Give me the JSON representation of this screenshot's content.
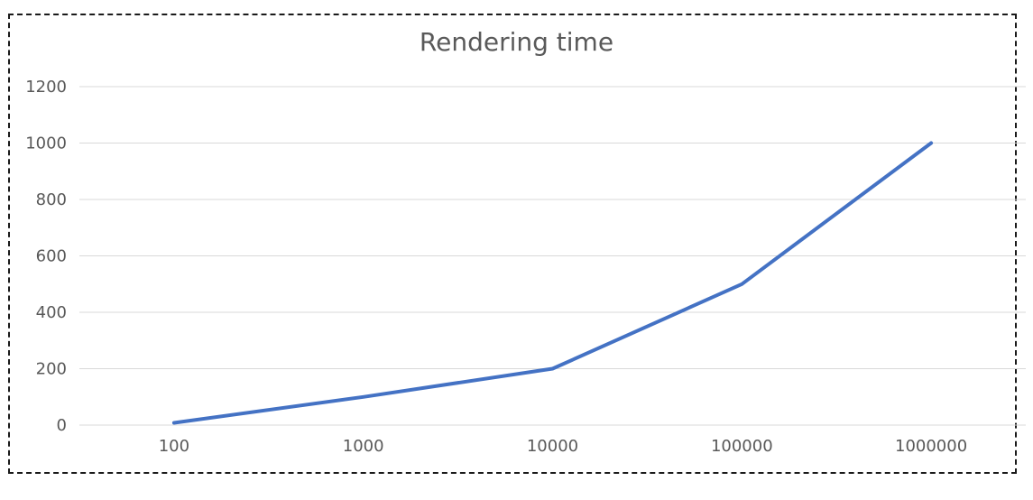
{
  "chart_data": {
    "type": "line",
    "title": "Rendering time",
    "xlabel": "",
    "ylabel": "",
    "categories": [
      "100",
      "1000",
      "10000",
      "100000",
      "1000000"
    ],
    "series": [
      {
        "values": [
          8,
          100,
          200,
          500,
          1000
        ],
        "color": "#4472c4"
      }
    ],
    "ylim": [
      0,
      1200
    ],
    "yticks": [
      "0",
      "200",
      "400",
      "600",
      "800",
      "1000",
      "1200"
    ],
    "grid": true,
    "legend": "none"
  }
}
